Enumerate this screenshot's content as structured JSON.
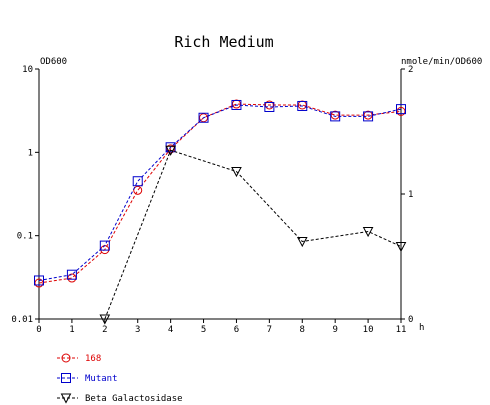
{
  "chart_data": {
    "type": "line",
    "title": "Rich Medium",
    "x": [
      0,
      1,
      2,
      3,
      4,
      5,
      6,
      7,
      8,
      9,
      10,
      11
    ],
    "xlabel": "h",
    "xlim": [
      0,
      11
    ],
    "left_axis": {
      "label": "OD600",
      "scale": "log",
      "ylim": [
        0.01,
        10
      ],
      "ticks": [
        "10",
        "1",
        "0.1",
        "0.01"
      ]
    },
    "right_axis": {
      "label": "nmole/min/OD600",
      "scale": "linear",
      "ylim": [
        0,
        2
      ],
      "ticks": [
        "2",
        "1",
        "0"
      ]
    },
    "x_ticks": [
      "0",
      "1",
      "2",
      "3",
      "4",
      "5",
      "6",
      "7",
      "8",
      "9",
      "10",
      "11"
    ],
    "grid": false,
    "legend_position": "bottom-left",
    "series": [
      {
        "name": "168",
        "axis": "left",
        "marker": "circle",
        "color": "#dd0000",
        "x": [
          0,
          1,
          2,
          3,
          4,
          5,
          6,
          7,
          8,
          9,
          10,
          11
        ],
        "values": [
          0.027,
          0.031,
          0.068,
          0.35,
          1.1,
          2.6,
          3.8,
          3.7,
          3.7,
          2.8,
          2.8,
          3.1
        ]
      },
      {
        "name": "Mutant",
        "axis": "left",
        "marker": "square",
        "color": "#0000cc",
        "x": [
          0,
          1,
          2,
          3,
          4,
          5,
          6,
          7,
          8,
          9,
          10,
          11
        ],
        "values": [
          0.029,
          0.034,
          0.076,
          0.45,
          1.15,
          2.6,
          3.7,
          3.5,
          3.6,
          2.7,
          2.7,
          3.3
        ]
      },
      {
        "name": "Beta Galactosidase",
        "axis": "right",
        "marker": "triangle-down",
        "color": "#000000",
        "x": [
          2,
          4,
          6,
          8,
          10,
          11
        ],
        "values": [
          0.0,
          1.35,
          1.18,
          0.62,
          0.7,
          0.58
        ]
      }
    ]
  }
}
